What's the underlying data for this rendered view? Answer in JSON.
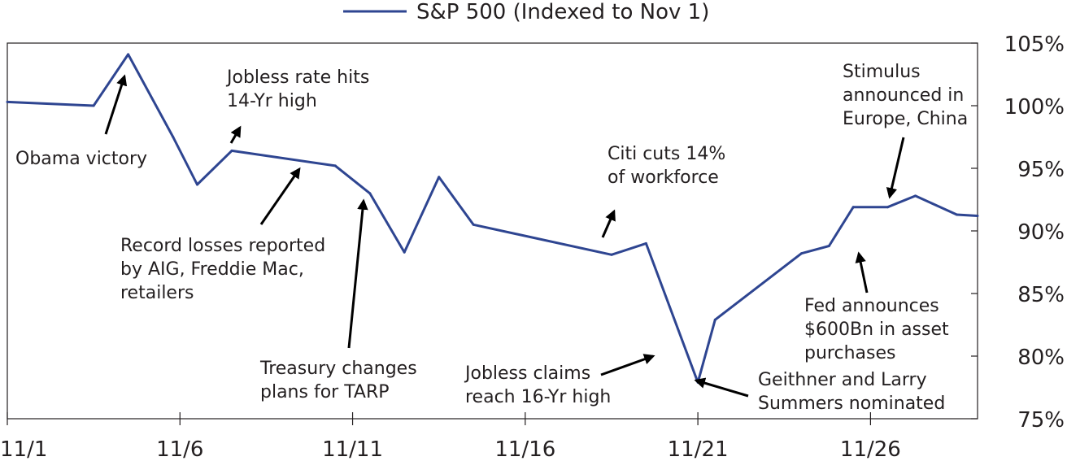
{
  "chart_data": {
    "type": "line",
    "title": "",
    "xlabel": "",
    "ylabel": "",
    "xlim": [
      1,
      29.1
    ],
    "ylim": [
      75,
      105
    ],
    "x_ticks": [
      1,
      6,
      11,
      16,
      21,
      26
    ],
    "x_tick_labels": [
      "11/1",
      "11/6",
      "11/11",
      "11/16",
      "11/21",
      "11/26"
    ],
    "y_ticks": [
      75,
      80,
      85,
      90,
      95,
      100,
      105
    ],
    "y_tick_labels": [
      "75%",
      "80%",
      "85%",
      "90%",
      "95%",
      "100%",
      "105%"
    ],
    "grid": false,
    "legend_position": "top-center",
    "series": [
      {
        "name": "S&P 500 (Indexed to Nov 1)",
        "color": "#2e4591",
        "x": [
          1,
          3.5,
          4.5,
          5.8,
          6.5,
          7.5,
          10.5,
          11.5,
          12.5,
          13.5,
          14.5,
          18.5,
          19.5,
          21,
          21.5,
          24,
          24.8,
          25.5,
          26.5,
          27.3,
          28.5,
          29.1
        ],
        "y": [
          100.3,
          100.0,
          104.1,
          97.5,
          93.7,
          96.4,
          95.2,
          93.0,
          88.3,
          94.3,
          90.5,
          88.1,
          89.0,
          77.9,
          82.9,
          88.2,
          88.8,
          91.9,
          91.9,
          92.8,
          91.3,
          91.2
        ]
      }
    ],
    "annotations": [
      {
        "lines": [
          "Obama victory"
        ],
        "target": [
          4.5,
          104.1
        ]
      },
      {
        "lines": [
          "Jobless rate hits",
          "14-Yr high"
        ],
        "target": [
          7.5,
          96.4
        ]
      },
      {
        "lines": [
          "Record losses reported",
          "by AIG, Freddie Mac,",
          "retailers"
        ],
        "target": [
          9.3,
          95.5
        ]
      },
      {
        "lines": [
          "Treasury changes",
          "plans for TARP"
        ],
        "target": [
          11.5,
          93.0
        ]
      },
      {
        "lines": [
          "Citi cuts 14%",
          "of workforce"
        ],
        "target": [
          19.5,
          89.0
        ]
      },
      {
        "lines": [
          "Jobless claims",
          "reach 16-Yr high"
        ],
        "target": [
          20.2,
          79.4
        ]
      },
      {
        "lines": [
          "Geithner and Larry",
          "Summers nominated"
        ],
        "target": [
          21,
          77.9
        ]
      },
      {
        "lines": [
          "Stimulus",
          "announced in",
          "Europe, China"
        ],
        "target": [
          25.5,
          91.9
        ]
      },
      {
        "lines": [
          "Fed announces",
          "$600Bn in asset",
          "purchases"
        ],
        "target": [
          24.8,
          88.8
        ]
      }
    ]
  }
}
